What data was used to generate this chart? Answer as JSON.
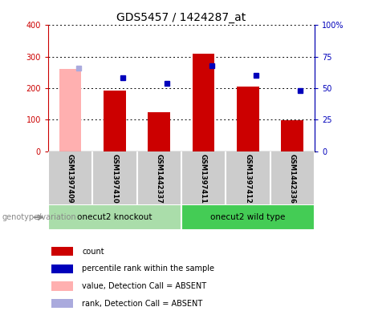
{
  "title": "GDS5457 / 1424287_at",
  "samples": [
    "GSM1397409",
    "GSM1397410",
    "GSM1442337",
    "GSM1397411",
    "GSM1397412",
    "GSM1442336"
  ],
  "count_values": [
    null,
    193,
    125,
    310,
    205,
    99
  ],
  "count_absent": [
    262,
    null,
    null,
    null,
    null,
    null
  ],
  "rank_values": [
    null,
    58,
    54,
    68,
    60,
    48
  ],
  "rank_absent": [
    66,
    null,
    null,
    null,
    null,
    null
  ],
  "ylim_left": [
    0,
    400
  ],
  "ylim_right": [
    0,
    100
  ],
  "yticks_left": [
    0,
    100,
    200,
    300,
    400
  ],
  "yticks_right": [
    0,
    25,
    50,
    75,
    100
  ],
  "ytick_labels_left": [
    "0",
    "100",
    "200",
    "300",
    "400"
  ],
  "ytick_labels_right": [
    "0",
    "25",
    "50",
    "75",
    "100%"
  ],
  "bar_color_red": "#CC0000",
  "bar_color_pink": "#FFB0B0",
  "dot_color_blue": "#0000BB",
  "dot_color_lightblue": "#AAAADD",
  "bar_width": 0.5,
  "group_label": "genotype/variation",
  "group1_label": "onecut2 knockout",
  "group2_label": "onecut2 wild type",
  "group1_color": "#AADDAA",
  "group2_color": "#44CC55",
  "legend_labels": [
    "count",
    "percentile rank within the sample",
    "value, Detection Call = ABSENT",
    "rank, Detection Call = ABSENT"
  ],
  "legend_colors": [
    "#CC0000",
    "#0000BB",
    "#FFB0B0",
    "#AAAADD"
  ],
  "grid_color": "black",
  "sample_bg": "#CCCCCC",
  "title_fontsize": 10,
  "axis_label_color_left": "#CC0000",
  "axis_label_color_right": "#0000BB"
}
